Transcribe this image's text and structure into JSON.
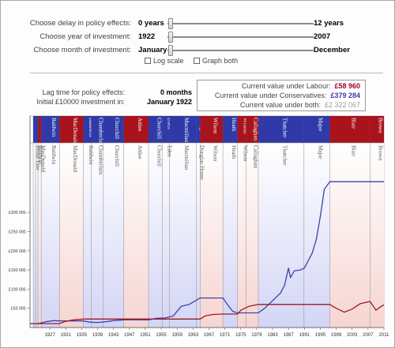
{
  "controls": {
    "delay": {
      "label": "Choose delay in policy effects:",
      "min": "0 years",
      "max": "12 years"
    },
    "year": {
      "label": "Choose year of investment:",
      "min": "1922",
      "max": "2007"
    },
    "month": {
      "label": "Choose month of investment:",
      "min": "January",
      "max": "December"
    },
    "checkboxes": [
      {
        "label": "Log scale",
        "checked": false
      },
      {
        "label": "Graph both",
        "checked": false
      }
    ]
  },
  "info": {
    "lag_label": "Lag time for policy effects:",
    "lag_value": "0 months",
    "initial_label": "Initial £10000 investment in:",
    "initial_value": "January 1922"
  },
  "values": {
    "labour_label": "Current value under Labour:",
    "labour_value": "£58 960",
    "conservative_label": "Current value under Conservatives:",
    "conservative_value": "£379 284",
    "both_label": "Current value under both:",
    "both_value": "£2 322 067"
  },
  "colors": {
    "labour": "#a8131c",
    "conservative": "#2f3aa8",
    "labour_band": "#f6d5d2",
    "conservative_band": "#d3d5f5",
    "labour_line": "#9b1b22",
    "conservative_line": "#3b44a8"
  },
  "chart_data": {
    "type": "line",
    "xlim": [
      1922,
      2011
    ],
    "ylim": [
      0,
      500000
    ],
    "x_ticks": [
      1927,
      1931,
      1935,
      1939,
      1943,
      1947,
      1951,
      1955,
      1959,
      1963,
      1967,
      1971,
      1975,
      1979,
      1983,
      1987,
      1991,
      1995,
      1999,
      2003,
      2007,
      2011
    ],
    "y_ticks": [
      {
        "value": 50000,
        "label": "£50 000."
      },
      {
        "value": 100000,
        "label": "£100 000."
      },
      {
        "value": 150000,
        "label": "£150 000."
      },
      {
        "value": 200000,
        "label": "£200 000."
      },
      {
        "value": 250000,
        "label": "£250 000."
      },
      {
        "value": 300000,
        "label": "£300 000."
      }
    ],
    "terms": [
      {
        "name": "Bonar Law",
        "party": "C",
        "start": 1922.8,
        "end": 1923.4
      },
      {
        "name": "Baldwin",
        "party": "C",
        "start": 1923.4,
        "end": 1924.0
      },
      {
        "name": "MacDonald",
        "party": "L",
        "start": 1924.0,
        "end": 1924.8
      },
      {
        "name": "Baldwin",
        "party": "C",
        "start": 1924.8,
        "end": 1929.4
      },
      {
        "name": "MacDonald",
        "party": "L",
        "start": 1929.4,
        "end": 1935.4
      },
      {
        "name": "Baldwin",
        "party": "C",
        "start": 1935.4,
        "end": 1937.4
      },
      {
        "name": "Chamberlain",
        "party": "C",
        "start": 1937.4,
        "end": 1940.4
      },
      {
        "name": "Churchill",
        "party": "C",
        "start": 1940.4,
        "end": 1945.6
      },
      {
        "name": "Attlee",
        "party": "L",
        "start": 1945.6,
        "end": 1951.8
      },
      {
        "name": "Churchill",
        "party": "C",
        "start": 1951.8,
        "end": 1955.3
      },
      {
        "name": "Eden",
        "party": "C",
        "start": 1955.3,
        "end": 1957.1
      },
      {
        "name": "Macmillan",
        "party": "C",
        "start": 1957.1,
        "end": 1963.8
      },
      {
        "name": "Douglas-Home",
        "party": "C",
        "start": 1963.8,
        "end": 1964.8
      },
      {
        "name": "Wilson",
        "party": "L",
        "start": 1964.8,
        "end": 1970.5
      },
      {
        "name": "Heath",
        "party": "C",
        "start": 1970.5,
        "end": 1974.2
      },
      {
        "name": "Wilson",
        "party": "L",
        "start": 1974.2,
        "end": 1976.3
      },
      {
        "name": "Callaghan",
        "party": "L",
        "start": 1976.3,
        "end": 1979.4
      },
      {
        "name": "Thatcher",
        "party": "C",
        "start": 1979.4,
        "end": 1990.9
      },
      {
        "name": "Major",
        "party": "C",
        "start": 1990.9,
        "end": 1997.4
      },
      {
        "name": "Blair",
        "party": "L",
        "start": 1997.4,
        "end": 2007.5
      },
      {
        "name": "Brown",
        "party": "L",
        "start": 2007.5,
        "end": 2011.0
      }
    ],
    "series": [
      {
        "name": "Conservatives",
        "party": "C",
        "x": [
          1922,
          1924,
          1926,
          1928,
          1929.4,
          1935.4,
          1937,
          1939,
          1941,
          1943,
          1945.6,
          1951.8,
          1954,
          1956,
          1958,
          1960,
          1962,
          1964.8,
          1970.5,
          1972,
          1973,
          1974.2,
          1979.4,
          1981,
          1983,
          1985,
          1986,
          1987,
          1987.5,
          1988.5,
          1990,
          1991,
          1992,
          1993,
          1994,
          1995,
          1996,
          1997.4,
          2011
        ],
        "y": [
          10000,
          10000,
          15000,
          18000,
          17000,
          17000,
          14000,
          13000,
          15000,
          18000,
          20000,
          20000,
          24000,
          25000,
          30000,
          55000,
          60000,
          77000,
          77000,
          55000,
          42000,
          38000,
          38000,
          50000,
          70000,
          90000,
          110000,
          155000,
          130000,
          148000,
          150000,
          155000,
          175000,
          195000,
          230000,
          290000,
          360000,
          380000,
          380000
        ]
      },
      {
        "name": "Labour",
        "party": "L",
        "x": [
          1922,
          1924,
          1924.8,
          1929.4,
          1931,
          1933,
          1935.4,
          1945.6,
          1947,
          1949,
          1951.8,
          1964.8,
          1966,
          1968,
          1970.5,
          1974.2,
          1975,
          1977,
          1979.4,
          1997.4,
          1999,
          2001,
          2003,
          2005,
          2007.5,
          2009,
          2010,
          2011
        ],
        "y": [
          10000,
          10000,
          10000,
          10000,
          16000,
          20000,
          22000,
          22000,
          22000,
          22000,
          22000,
          22000,
          30000,
          34000,
          35000,
          35000,
          45000,
          55000,
          60000,
          60000,
          50000,
          40000,
          48000,
          62000,
          68000,
          45000,
          53000,
          59000
        ]
      }
    ]
  }
}
